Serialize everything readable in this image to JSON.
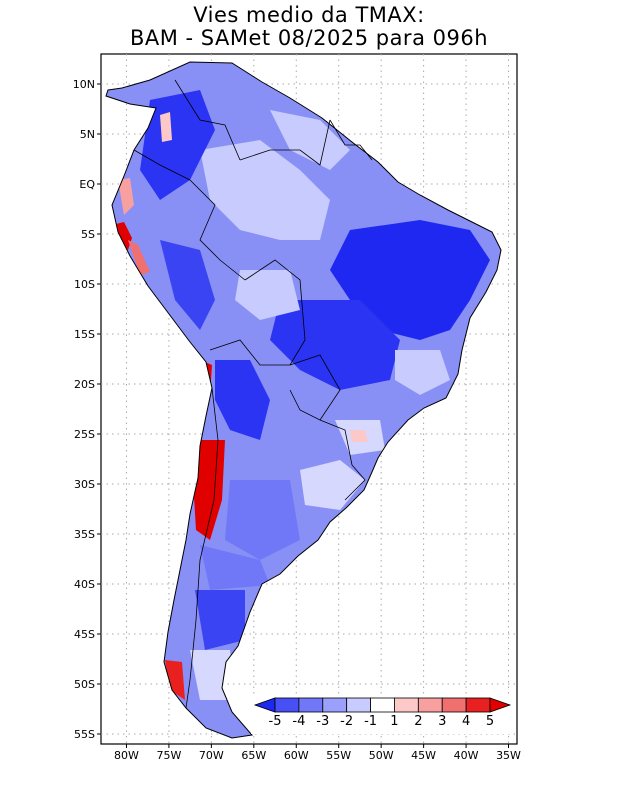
{
  "title": {
    "line1": "Vies medio da TMAX:",
    "line2": "BAM - SAMet 08/2025  para 096h"
  },
  "map": {
    "lon_range": [
      -83,
      -34
    ],
    "lat_range": [
      -56,
      13
    ],
    "lat_labels": [
      "10N",
      "5N",
      "EQ",
      "5S",
      "10S",
      "15S",
      "20S",
      "25S",
      "30S",
      "35S",
      "40S",
      "45S",
      "50S",
      "55S"
    ],
    "lat_values": [
      10,
      5,
      0,
      -5,
      -10,
      -15,
      -20,
      -25,
      -30,
      -35,
      -40,
      -45,
      -50,
      -55
    ],
    "lon_labels": [
      "80W",
      "75W",
      "70W",
      "65W",
      "60W",
      "55W",
      "50W",
      "45W",
      "40W",
      "35W"
    ],
    "lon_values": [
      -80,
      -75,
      -70,
      -65,
      -60,
      -55,
      -50,
      -45,
      -40,
      -35
    ]
  },
  "colorbar": {
    "labels": [
      "-5",
      "-4",
      "-3",
      "-2",
      "-1",
      "1",
      "2",
      "3",
      "4",
      "5"
    ],
    "colors": [
      "#1e28f0",
      "#4650f5",
      "#7078f8",
      "#9aa0fb",
      "#c8cbfd",
      "#ffffff",
      "#fcc8c8",
      "#f8a0a0",
      "#f07070",
      "#e82020",
      "#e00000"
    ]
  },
  "palette": {
    "land_base": "#8890f6",
    "coast": "#000000",
    "grid": "#aaaaaa"
  }
}
